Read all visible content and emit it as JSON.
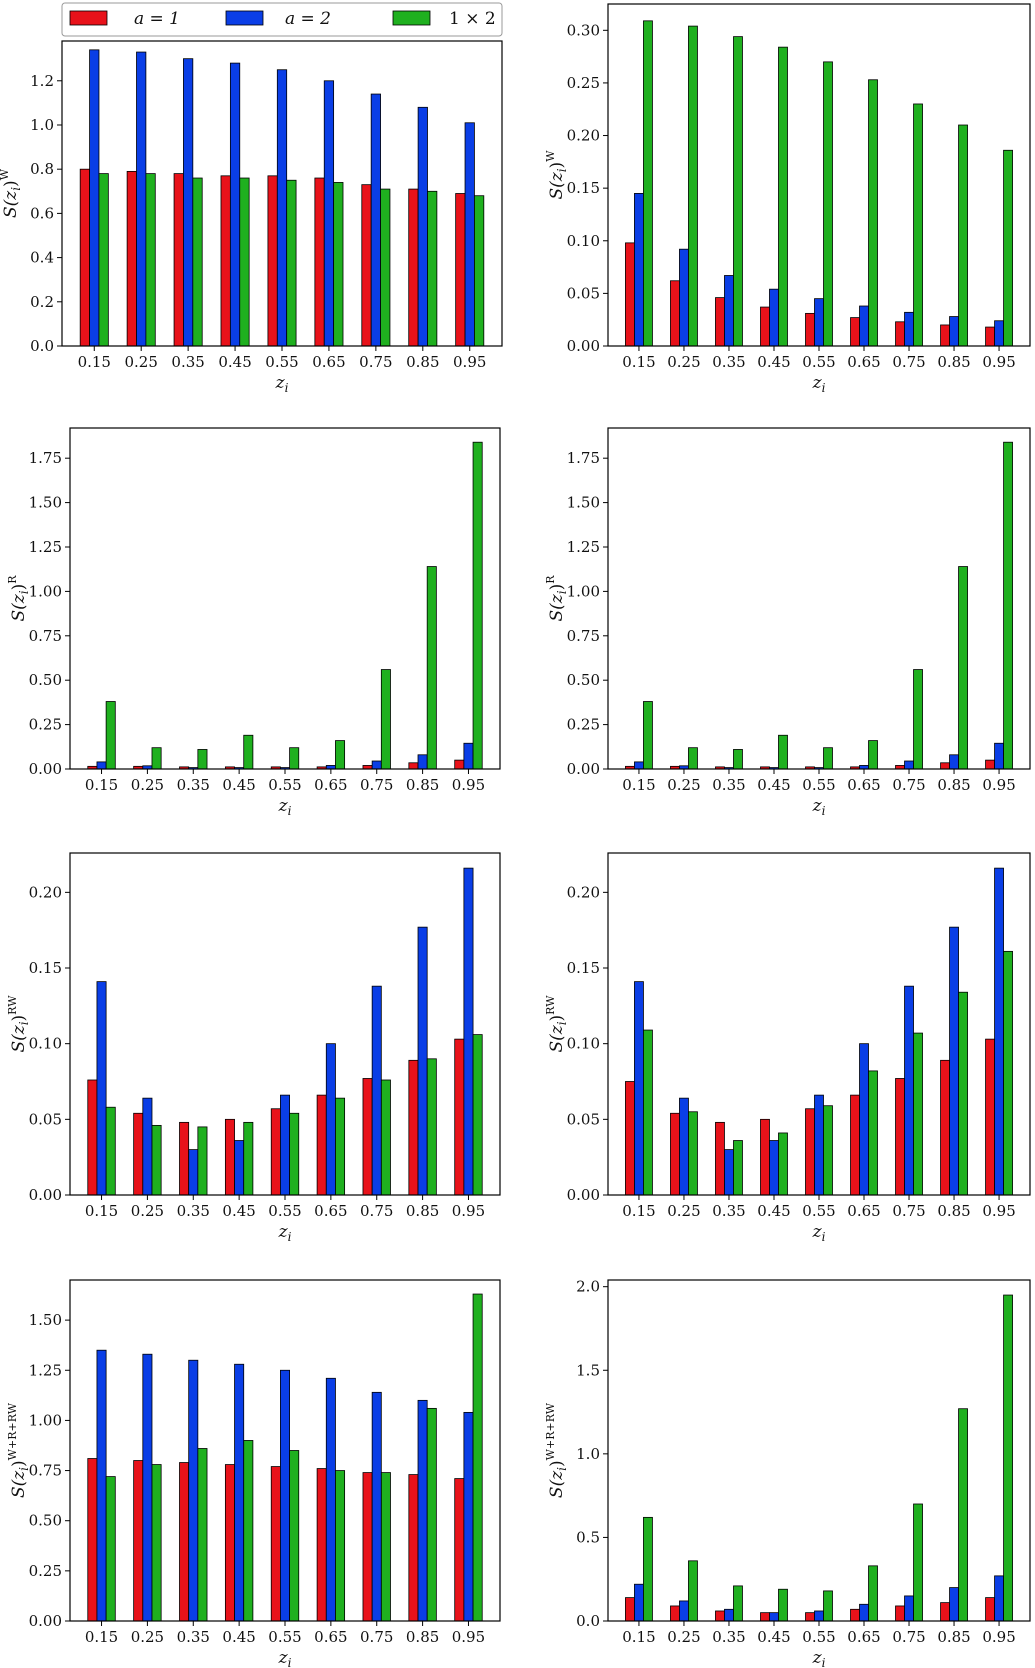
{
  "legend": {
    "entries": [
      {
        "label": "a = 1",
        "color": "#e8121a"
      },
      {
        "label": "a = 2",
        "color": "#0a3ee6"
      },
      {
        "label": "1 × 2",
        "color": "#1fb01f"
      }
    ]
  },
  "colors": {
    "a1": "#e8121a",
    "a2": "#0a3ee6",
    "cross": "#1fb01f"
  },
  "chart_data": [
    {
      "type": "bar",
      "xlabel": "z_i",
      "ylabel": "S(z_i)^W",
      "categories": [
        "0.15",
        "0.25",
        "0.35",
        "0.45",
        "0.55",
        "0.65",
        "0.75",
        "0.85",
        "0.95"
      ],
      "ylim": [
        0,
        1.38
      ],
      "yticks": [
        "0.0",
        "0.2",
        "0.4",
        "0.6",
        "0.8",
        "1.0",
        "1.2"
      ],
      "series": [
        {
          "name": "a = 1",
          "values": [
            0.8,
            0.79,
            0.78,
            0.77,
            0.77,
            0.76,
            0.73,
            0.71,
            0.69
          ]
        },
        {
          "name": "a = 2",
          "values": [
            1.34,
            1.33,
            1.3,
            1.28,
            1.25,
            1.2,
            1.14,
            1.08,
            1.01
          ]
        },
        {
          "name": "1 × 2",
          "values": [
            0.78,
            0.78,
            0.76,
            0.76,
            0.75,
            0.74,
            0.71,
            0.7,
            0.68
          ]
        }
      ]
    },
    {
      "type": "bar",
      "xlabel": "z_i",
      "ylabel": "S(z_i)^W",
      "categories": [
        "0.15",
        "0.25",
        "0.35",
        "0.45",
        "0.55",
        "0.65",
        "0.75",
        "0.85",
        "0.95"
      ],
      "ylim": [
        0,
        0.325
      ],
      "yticks": [
        "0.00",
        "0.05",
        "0.10",
        "0.15",
        "0.20",
        "0.25",
        "0.30"
      ],
      "series": [
        {
          "name": "a = 1",
          "values": [
            0.098,
            0.062,
            0.046,
            0.037,
            0.031,
            0.027,
            0.023,
            0.02,
            0.018
          ]
        },
        {
          "name": "a = 2",
          "values": [
            0.145,
            0.092,
            0.067,
            0.054,
            0.045,
            0.038,
            0.032,
            0.028,
            0.024
          ]
        },
        {
          "name": "1 × 2",
          "values": [
            0.309,
            0.304,
            0.294,
            0.284,
            0.27,
            0.253,
            0.23,
            0.21,
            0.186
          ]
        }
      ]
    },
    {
      "type": "bar",
      "xlabel": "z_i",
      "ylabel": "S(z_i)^R",
      "categories": [
        "0.15",
        "0.25",
        "0.35",
        "0.45",
        "0.55",
        "0.65",
        "0.75",
        "0.85",
        "0.95"
      ],
      "ylim": [
        0,
        1.92
      ],
      "yticks": [
        "0.00",
        "0.25",
        "0.50",
        "0.75",
        "1.00",
        "1.25",
        "1.50",
        "1.75"
      ],
      "series": [
        {
          "name": "a = 1",
          "values": [
            0.015,
            0.015,
            0.012,
            0.012,
            0.012,
            0.012,
            0.02,
            0.035,
            0.05
          ]
        },
        {
          "name": "a = 2",
          "values": [
            0.04,
            0.018,
            0.008,
            0.008,
            0.008,
            0.02,
            0.045,
            0.08,
            0.145
          ]
        },
        {
          "name": "1 × 2",
          "values": [
            0.38,
            0.12,
            0.11,
            0.19,
            0.12,
            0.16,
            0.56,
            1.14,
            1.84
          ]
        }
      ]
    },
    {
      "type": "bar",
      "xlabel": "z_i",
      "ylabel": "S(z_i)^R",
      "categories": [
        "0.15",
        "0.25",
        "0.35",
        "0.45",
        "0.55",
        "0.65",
        "0.75",
        "0.85",
        "0.95"
      ],
      "ylim": [
        0,
        1.92
      ],
      "yticks": [
        "0.00",
        "0.25",
        "0.50",
        "0.75",
        "1.00",
        "1.25",
        "1.50",
        "1.75"
      ],
      "series": [
        {
          "name": "a = 1",
          "values": [
            0.015,
            0.015,
            0.012,
            0.012,
            0.012,
            0.012,
            0.02,
            0.035,
            0.05
          ]
        },
        {
          "name": "a = 2",
          "values": [
            0.04,
            0.018,
            0.008,
            0.008,
            0.008,
            0.02,
            0.045,
            0.08,
            0.145
          ]
        },
        {
          "name": "1 × 2",
          "values": [
            0.38,
            0.12,
            0.11,
            0.19,
            0.12,
            0.16,
            0.56,
            1.14,
            1.84
          ]
        }
      ]
    },
    {
      "type": "bar",
      "xlabel": "z_i",
      "ylabel": "S(z_i)^RW",
      "categories": [
        "0.15",
        "0.25",
        "0.35",
        "0.45",
        "0.55",
        "0.65",
        "0.75",
        "0.85",
        "0.95"
      ],
      "ylim": [
        0,
        0.226
      ],
      "yticks": [
        "0.00",
        "0.05",
        "0.10",
        "0.15",
        "0.20"
      ],
      "series": [
        {
          "name": "a = 1",
          "values": [
            0.076,
            0.054,
            0.048,
            0.05,
            0.057,
            0.066,
            0.077,
            0.089,
            0.103
          ]
        },
        {
          "name": "a = 2",
          "values": [
            0.141,
            0.064,
            0.03,
            0.036,
            0.066,
            0.1,
            0.138,
            0.177,
            0.216
          ]
        },
        {
          "name": "1 × 2",
          "values": [
            0.058,
            0.046,
            0.045,
            0.048,
            0.054,
            0.064,
            0.076,
            0.09,
            0.106
          ]
        }
      ]
    },
    {
      "type": "bar",
      "xlabel": "z_i",
      "ylabel": "S(z_i)^RW",
      "categories": [
        "0.15",
        "0.25",
        "0.35",
        "0.45",
        "0.55",
        "0.65",
        "0.75",
        "0.85",
        "0.95"
      ],
      "ylim": [
        0,
        0.226
      ],
      "yticks": [
        "0.00",
        "0.05",
        "0.10",
        "0.15",
        "0.20"
      ],
      "series": [
        {
          "name": "a = 1",
          "values": [
            0.075,
            0.054,
            0.048,
            0.05,
            0.057,
            0.066,
            0.077,
            0.089,
            0.103
          ]
        },
        {
          "name": "a = 2",
          "values": [
            0.141,
            0.064,
            0.03,
            0.036,
            0.066,
            0.1,
            0.138,
            0.177,
            0.216
          ]
        },
        {
          "name": "1 × 2",
          "values": [
            0.109,
            0.055,
            0.036,
            0.041,
            0.059,
            0.082,
            0.107,
            0.134,
            0.161
          ]
        }
      ]
    },
    {
      "type": "bar",
      "xlabel": "z_i",
      "ylabel": "S(z_i)^W+R+RW",
      "categories": [
        "0.15",
        "0.25",
        "0.35",
        "0.45",
        "0.55",
        "0.65",
        "0.75",
        "0.85",
        "0.95"
      ],
      "ylim": [
        0,
        1.7
      ],
      "yticks": [
        "0.00",
        "0.25",
        "0.50",
        "0.75",
        "1.00",
        "1.25",
        "1.50"
      ],
      "series": [
        {
          "name": "a = 1",
          "values": [
            0.81,
            0.8,
            0.79,
            0.78,
            0.77,
            0.76,
            0.74,
            0.73,
            0.71
          ]
        },
        {
          "name": "a = 2",
          "values": [
            1.35,
            1.33,
            1.3,
            1.28,
            1.25,
            1.21,
            1.14,
            1.1,
            1.04
          ]
        },
        {
          "name": "1 × 2",
          "values": [
            0.72,
            0.78,
            0.86,
            0.9,
            0.85,
            0.75,
            0.74,
            1.06,
            1.63
          ]
        }
      ]
    },
    {
      "type": "bar",
      "xlabel": "z_i",
      "ylabel": "S(z_i)^W+R+RW",
      "categories": [
        "0.15",
        "0.25",
        "0.35",
        "0.45",
        "0.55",
        "0.65",
        "0.75",
        "0.85",
        "0.95"
      ],
      "ylim": [
        0,
        2.04
      ],
      "yticks": [
        "0.0",
        "0.5",
        "1.0",
        "1.5",
        "2.0"
      ],
      "series": [
        {
          "name": "a = 1",
          "values": [
            0.14,
            0.09,
            0.06,
            0.05,
            0.05,
            0.07,
            0.09,
            0.11,
            0.14
          ]
        },
        {
          "name": "a = 2",
          "values": [
            0.22,
            0.12,
            0.07,
            0.05,
            0.06,
            0.1,
            0.15,
            0.2,
            0.27
          ]
        },
        {
          "name": "1 × 2",
          "values": [
            0.62,
            0.36,
            0.21,
            0.19,
            0.18,
            0.33,
            0.7,
            1.27,
            1.95
          ]
        }
      ]
    }
  ]
}
